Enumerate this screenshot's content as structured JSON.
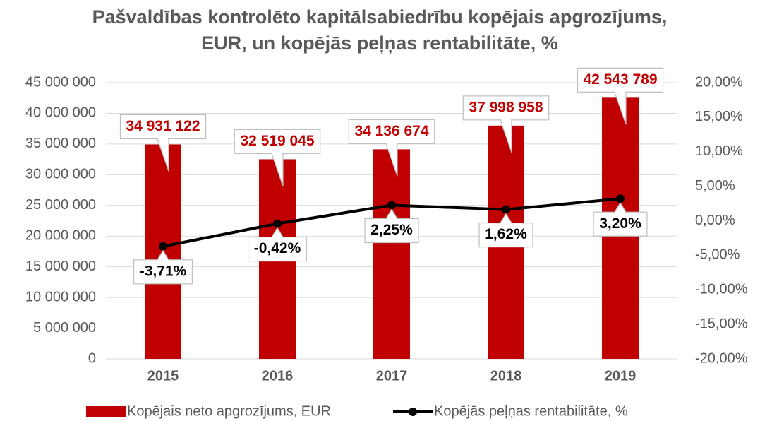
{
  "chart_data": {
    "type": "bar",
    "title": "Pašvaldības kontrolēto kapitālsabiedrību kopējais apgrozījums, EUR, un kopējās peļņas rentabilitāte, %",
    "categories": [
      "2015",
      "2016",
      "2017",
      "2018",
      "2019"
    ],
    "series": [
      {
        "name": "Kopējais neto apgrozījums, EUR",
        "color": "#c00000",
        "type": "bar",
        "values": [
          34931122,
          32519045,
          34136674,
          37998958,
          42543789
        ],
        "value_labels": [
          "34 931 122",
          "32 519 045",
          "34 136 674",
          "37 998 958",
          "42 543 789"
        ]
      },
      {
        "name": "Kopējās peļņas rentabilitāte, %",
        "color": "#000000",
        "type": "line",
        "axis": "y2",
        "values": [
          -3.71,
          -0.42,
          2.25,
          1.62,
          3.2
        ],
        "value_labels": [
          "-3,71%",
          "-0,42%",
          "2,25%",
          "1,62%",
          "3,20%"
        ]
      }
    ],
    "ylim": [
      0,
      45000000
    ],
    "yticks": [
      0,
      {
        "value": 5000000,
        "label": "5 000 000"
      },
      {
        "value": 10000000,
        "label": "10 000 000"
      },
      {
        "value": 15000000,
        "label": "15 000 000"
      },
      {
        "value": 20000000,
        "label": "20 000 000"
      },
      {
        "value": 25000000,
        "label": "25 000 000"
      },
      {
        "value": 30000000,
        "label": "30 000 000"
      },
      {
        "value": 35000000,
        "label": "35 000 000"
      },
      {
        "value": 40000000,
        "label": "40 000 000"
      },
      {
        "value": 45000000,
        "label": "45 000 000"
      }
    ],
    "y2lim": [
      -20,
      20
    ],
    "y2ticks": [
      {
        "value": -20,
        "label": "-20,00%"
      },
      {
        "value": -15,
        "label": "-15,00%"
      },
      {
        "value": -10,
        "label": "-10,00%"
      },
      {
        "value": -5,
        "label": "-5,00%"
      },
      {
        "value": 0,
        "label": "0,00%"
      },
      {
        "value": 5,
        "label": "5,00%"
      },
      {
        "value": 10,
        "label": "10,00%"
      },
      {
        "value": 15,
        "label": "15,00%"
      },
      {
        "value": 20,
        "label": "20,00%"
      }
    ],
    "grid": true,
    "legend": "bottom"
  }
}
